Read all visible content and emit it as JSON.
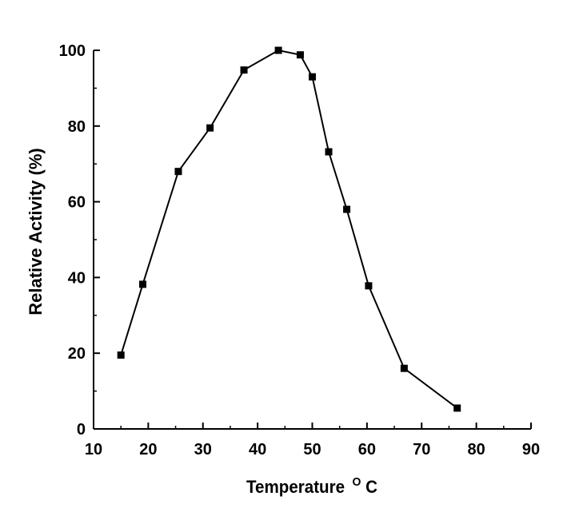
{
  "chart_data": {
    "type": "line",
    "title": "",
    "xlabel": "Temperature",
    "xlabel_unit_sup": "O",
    "xlabel_unit": "C",
    "ylabel": "Relative Activity (%)",
    "xlim": [
      10,
      90
    ],
    "ylim": [
      0,
      100
    ],
    "xticks": [
      10,
      20,
      30,
      40,
      50,
      60,
      70,
      80,
      90
    ],
    "yticks": [
      0,
      20,
      40,
      60,
      80,
      100
    ],
    "grid": false,
    "legend": "none",
    "marker": "square",
    "color": "#000000",
    "series": [
      {
        "x": [
          15,
          19,
          25.5,
          31.3,
          37.5,
          43.8,
          47.8,
          50,
          53,
          56.3,
          60.3,
          66.8,
          76.5
        ],
        "y": [
          19.5,
          38.2,
          68,
          79.5,
          94.8,
          100,
          98.8,
          93,
          73.2,
          58,
          37.8,
          16,
          5.5
        ]
      }
    ]
  }
}
